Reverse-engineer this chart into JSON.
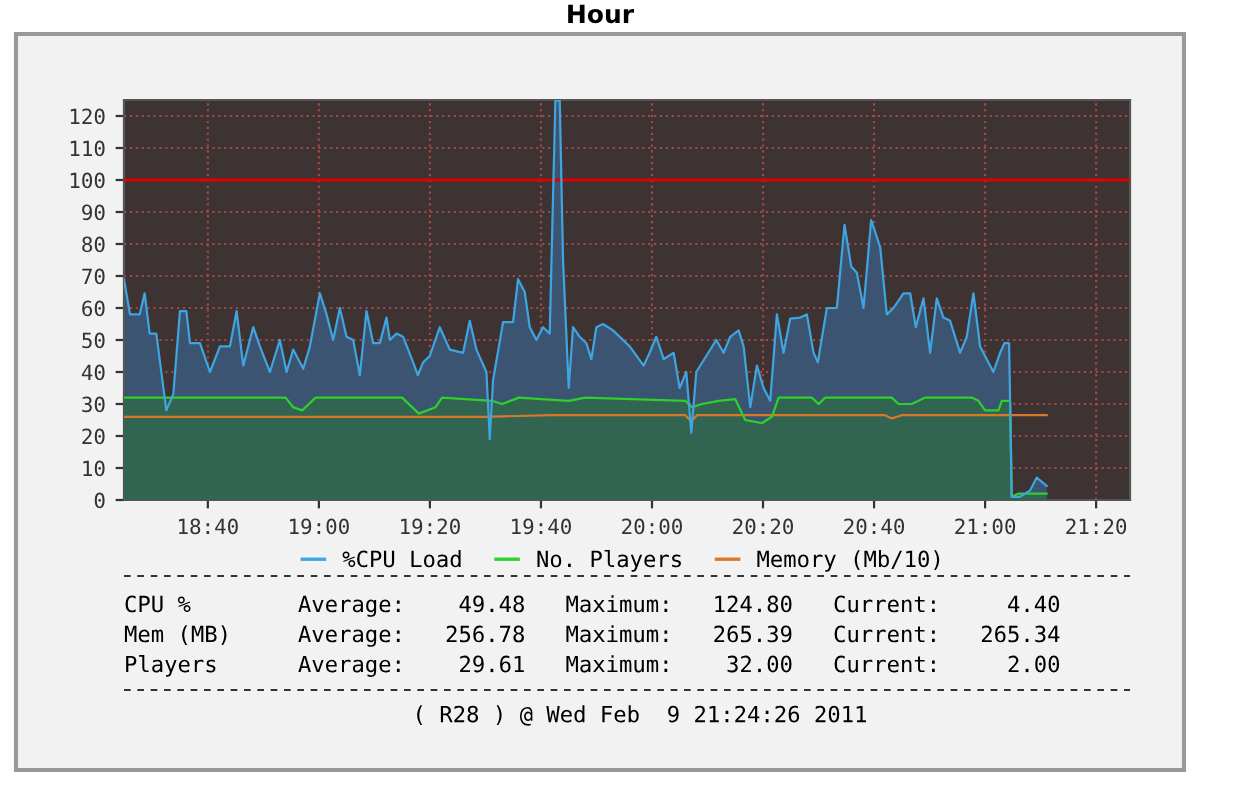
{
  "chart_data": {
    "type": "area",
    "title": "Hour",
    "xlim": [
      18.415,
      21.435
    ],
    "ylim": [
      0,
      125
    ],
    "xticks": [
      {
        "value": 18.6667,
        "label": "18:40"
      },
      {
        "value": 19.0,
        "label": "19:00"
      },
      {
        "value": 19.3333,
        "label": "19:20"
      },
      {
        "value": 19.6667,
        "label": "19:40"
      },
      {
        "value": 20.0,
        "label": "20:00"
      },
      {
        "value": 20.3333,
        "label": "20:20"
      },
      {
        "value": 20.6667,
        "label": "20:40"
      },
      {
        "value": 21.0,
        "label": "21:00"
      },
      {
        "value": 21.3333,
        "label": "21:20"
      }
    ],
    "yticks": [
      0,
      10,
      20,
      30,
      40,
      50,
      60,
      70,
      80,
      90,
      100,
      110,
      120
    ],
    "grid": true,
    "legend": "bottom",
    "ref_lines": [
      {
        "axis": "y",
        "value": 100,
        "color": "#e00000"
      }
    ],
    "series": [
      {
        "name": "%CPU Load",
        "color": "#3fa4e0",
        "x": [
          18.415,
          18.433,
          18.462,
          18.477,
          18.492,
          18.512,
          18.542,
          18.563,
          18.583,
          18.602,
          18.613,
          18.643,
          18.673,
          18.703,
          18.733,
          18.753,
          18.773,
          18.803,
          18.823,
          18.853,
          18.883,
          18.903,
          18.923,
          18.953,
          18.973,
          19.003,
          19.023,
          19.043,
          19.063,
          19.083,
          19.103,
          19.123,
          19.143,
          19.163,
          19.183,
          19.203,
          19.213,
          19.233,
          19.253,
          19.283,
          19.297,
          19.313,
          19.333,
          19.363,
          19.393,
          19.433,
          19.453,
          19.473,
          19.503,
          19.513,
          19.523,
          19.553,
          19.583,
          19.598,
          19.618,
          19.633,
          19.653,
          19.673,
          19.693,
          19.71,
          19.723,
          19.733,
          19.75,
          19.763,
          19.783,
          19.803,
          19.818,
          19.833,
          19.853,
          19.883,
          19.903,
          19.933,
          19.975,
          19.993,
          20.013,
          20.035,
          20.065,
          20.083,
          20.103,
          20.118,
          20.133,
          20.163,
          20.193,
          20.215,
          20.235,
          20.26,
          20.275,
          20.295,
          20.315,
          20.335,
          20.355,
          20.375,
          20.395,
          20.415,
          20.445,
          20.465,
          20.485,
          20.498,
          20.525,
          20.555,
          20.578,
          20.598,
          20.615,
          20.635,
          20.658,
          20.685,
          20.705,
          20.725,
          20.755,
          20.775,
          20.792,
          20.815,
          20.835,
          20.855,
          20.875,
          20.895,
          20.925,
          20.945,
          20.965,
          20.985,
          21.005,
          21.025,
          21.045,
          21.058,
          21.072,
          21.08,
          21.105,
          21.135,
          21.155,
          21.185
        ],
        "values": [
          69,
          58,
          58,
          64.6,
          52,
          52,
          28,
          33,
          59,
          59,
          49,
          49,
          40,
          48,
          48,
          59,
          42,
          54,
          48,
          40,
          50,
          40,
          47,
          41,
          48,
          64.6,
          58,
          50,
          60,
          51,
          50,
          39,
          59,
          49,
          49,
          57,
          50,
          52,
          51,
          43,
          39,
          43,
          45,
          54,
          47,
          46,
          56,
          47,
          40,
          19,
          37.5,
          55.6,
          55.6,
          69,
          65,
          54,
          50,
          54,
          52,
          124.8,
          124.8,
          75,
          35,
          54,
          51,
          49,
          44,
          54,
          55,
          53,
          51,
          48,
          42,
          46,
          51,
          44,
          46,
          35,
          40,
          21,
          40,
          45,
          50,
          46,
          51,
          53,
          48,
          29,
          42,
          35,
          31,
          58,
          46,
          56.7,
          57,
          58,
          46,
          43,
          60,
          60,
          86,
          73,
          71,
          60,
          87.5,
          79,
          58,
          60,
          64.6,
          64.6,
          54,
          63,
          46,
          63,
          57,
          56,
          46,
          51,
          64.6,
          48,
          44,
          40,
          46,
          49,
          49,
          1,
          1,
          3,
          7,
          4.4
        ]
      },
      {
        "name": "No. Players",
        "color": "#2ed02e",
        "x": [
          18.415,
          18.9,
          18.923,
          18.95,
          18.99,
          19.25,
          19.3,
          19.35,
          19.37,
          19.52,
          19.55,
          19.6,
          19.75,
          19.8,
          20.1,
          20.12,
          20.15,
          20.2,
          20.25,
          20.28,
          20.33,
          20.36,
          20.38,
          20.48,
          20.5,
          20.52,
          20.72,
          20.74,
          20.78,
          20.82,
          20.96,
          20.98,
          21.0,
          21.04,
          21.05,
          21.075,
          21.08,
          21.1,
          21.185
        ],
        "values": [
          32,
          32,
          29,
          28,
          32,
          32,
          27,
          29,
          32,
          31,
          30,
          32,
          31,
          32,
          31,
          29,
          30,
          31,
          31.5,
          25,
          24,
          26,
          32,
          32,
          30,
          32,
          32,
          30,
          30,
          32,
          32,
          31,
          28,
          28,
          31,
          31,
          1,
          2,
          2
        ]
      },
      {
        "name": "Memory (Mb/10)",
        "type": "line",
        "color": "#d9782b",
        "x": [
          18.415,
          19.5,
          19.7,
          20.1,
          20.118,
          20.135,
          20.7,
          20.72,
          20.75,
          21.07,
          21.1,
          21.185
        ],
        "values": [
          26,
          26,
          26.5,
          26.5,
          24.5,
          26.5,
          26.5,
          25.5,
          26.5,
          26.5,
          26.5,
          26.5
        ]
      }
    ],
    "annotations": [
      "CPU %        Average:    49.48   Maximum:   124.80   Current:     4.40",
      "Mem (MB)     Average:   256.78   Maximum:   265.39   Current:   265.34",
      "Players      Average:    29.61   Maximum:    32.00   Current:     2.00",
      "( R28 ) @ Wed Feb  9 21:24:26 2011"
    ]
  }
}
